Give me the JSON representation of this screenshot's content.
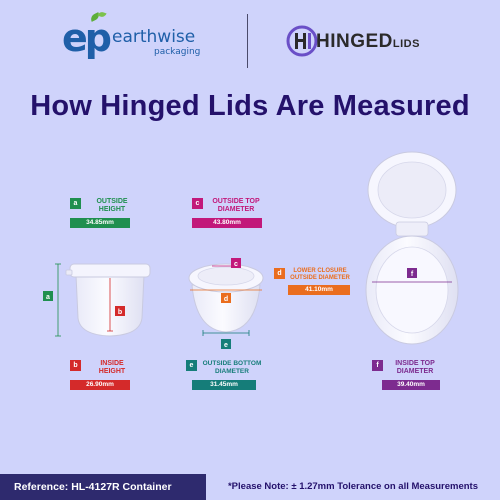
{
  "header": {
    "earthwise_mark": "ep",
    "earthwise_name": "earthwise",
    "earthwise_sub": "packaging",
    "hinged_name": "HINGED",
    "hinged_small": "LIDS"
  },
  "title": "How Hinged Lids Are Measured",
  "measurements": [
    {
      "key": "a",
      "label_line1": "OUTSIDE",
      "label_line2": "HEIGHT",
      "value": "34.85mm",
      "color": "#1f8f4f"
    },
    {
      "key": "c",
      "label_line1": "OUTSIDE TOP",
      "label_line2": "DIAMETER",
      "value": "43.80mm",
      "color": "#c2187a"
    },
    {
      "key": "d",
      "label_line1": "LOWER CLOSURE",
      "label_line2": "OUTSIDE DIAMETER",
      "value": "41.10mm",
      "color": "#ea6d1e"
    },
    {
      "key": "b",
      "label_line1": "INSIDE",
      "label_line2": "HEIGHT",
      "value": "26.90mm",
      "color": "#d42a2a"
    },
    {
      "key": "e",
      "label_line1": "OUTSIDE BOTTOM",
      "label_line2": "DIAMETER",
      "value": "31.45mm",
      "color": "#157d79"
    },
    {
      "key": "f",
      "label_line1": "INSIDE TOP",
      "label_line2": "DIAMETER",
      "value": "39.40mm",
      "color": "#7d2b8f"
    }
  ],
  "diagram_tags": {
    "a": "a",
    "b": "b",
    "c": "c",
    "d": "d",
    "e": "e",
    "f": "f"
  },
  "footer": {
    "reference": "Reference: HL-4127R Container",
    "note": "*Please Note: ± 1.27mm Tolerance on all Measurements"
  }
}
